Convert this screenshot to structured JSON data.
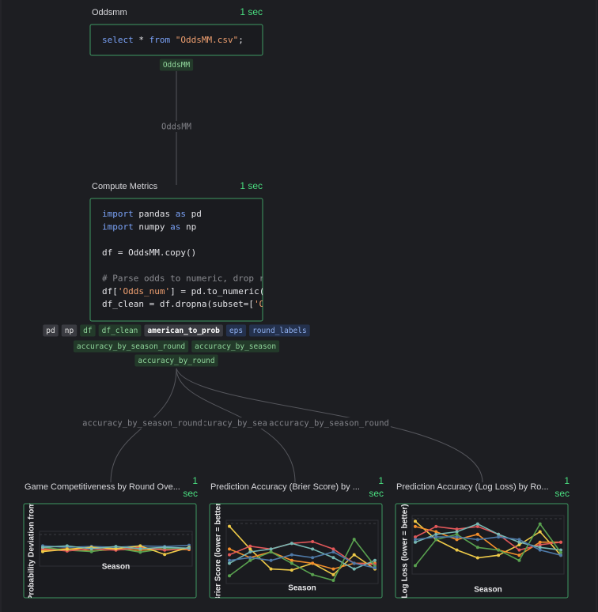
{
  "cells": [
    {
      "title": "Oddsmm",
      "duration": "1 sec",
      "code": [
        [
          {
            "t": "select",
            "s": "kw"
          },
          {
            "t": " * "
          },
          {
            "t": "from",
            "s": "kw"
          },
          {
            "t": " "
          },
          {
            "t": "\"OddsMM.csv\"",
            "s": "str"
          },
          {
            "t": ";"
          }
        ]
      ],
      "outputs": [
        {
          "t": "OddsMM",
          "s": "green"
        }
      ]
    },
    {
      "title": "Compute Metrics",
      "duration": "1 sec",
      "code": [
        [
          {
            "t": "import",
            "s": "kw"
          },
          {
            "t": " pandas "
          },
          {
            "t": "as",
            "s": "kw"
          },
          {
            "t": " pd"
          }
        ],
        [
          {
            "t": "import",
            "s": "kw"
          },
          {
            "t": " numpy "
          },
          {
            "t": "as",
            "s": "kw"
          },
          {
            "t": " np"
          }
        ],
        [],
        [
          {
            "t": "df = OddsMM.copy()"
          }
        ],
        [],
        [
          {
            "t": "# Parse odds to numeric, drop rows",
            "s": "com"
          }
        ],
        [
          {
            "t": "df["
          },
          {
            "t": "'Odds_num'",
            "s": "str"
          },
          {
            "t": "] = pd.to_numeric("
          }
        ],
        [
          {
            "t": "df_clean = df.dropna(subset=["
          },
          {
            "t": "'Odds_num'",
            "s": "str"
          }
        ]
      ],
      "outputs": [
        [
          {
            "t": "pd",
            "s": "plain"
          },
          {
            "t": "np",
            "s": "plain"
          },
          {
            "t": "df",
            "s": "green"
          },
          {
            "t": "df_clean",
            "s": "green"
          },
          {
            "t": "american_to_prob",
            "s": "white"
          },
          {
            "t": "eps",
            "s": "blue"
          },
          {
            "t": "round_labels",
            "s": "blue"
          }
        ],
        [
          {
            "t": "accuracy_by_season_round",
            "s": "green"
          },
          {
            "t": "accuracy_by_season",
            "s": "green"
          }
        ],
        [
          {
            "t": "accuracy_by_round",
            "s": "green"
          }
        ]
      ]
    }
  ],
  "edges": [
    {
      "label": "OddsMM"
    },
    {
      "label": "accuracy_by_season"
    },
    {
      "label": "accuracy_by_season_round"
    },
    {
      "label": "accuracy_by_season_round"
    }
  ],
  "charts": [
    {
      "type": "line",
      "title": "Game Competitiveness by Round Ove...",
      "duration": "1 sec",
      "ylabel": "Probability Deviation from",
      "xlabel": "Season",
      "ylim": [
        0,
        1
      ],
      "series": [
        {
          "color": "#4e79a7",
          "values": [
            0.6,
            0.55,
            0.58,
            0.55,
            0.6,
            0.58,
            0.62
          ]
        },
        {
          "color": "#f28e2b",
          "values": [
            0.45,
            0.5,
            0.42,
            0.48,
            0.45,
            0.5,
            0.47
          ]
        },
        {
          "color": "#59a14f",
          "values": [
            0.55,
            0.45,
            0.4,
            0.52,
            0.38,
            0.5,
            0.5
          ]
        },
        {
          "color": "#e15759",
          "values": [
            0.5,
            0.42,
            0.5,
            0.45,
            0.55,
            0.45,
            0.5
          ]
        },
        {
          "color": "#edc948",
          "values": [
            0.4,
            0.48,
            0.55,
            0.5,
            0.6,
            0.3,
            0.55
          ]
        },
        {
          "color": "#76b7b2",
          "values": [
            0.55,
            0.6,
            0.5,
            0.58,
            0.5,
            0.55,
            0.52
          ]
        }
      ]
    },
    {
      "type": "line",
      "title": "Prediction Accuracy (Brier Score) by ...",
      "duration": "1 sec",
      "ylabel": "Brier Score (lower = better)",
      "xlabel": "Season",
      "ylim": [
        0,
        1
      ],
      "series": [
        {
          "color": "#edc948",
          "values": [
            0.95,
            0.55,
            0.2,
            0.18,
            0.3,
            0.1,
            0.45,
            0.2
          ]
        },
        {
          "color": "#f28e2b",
          "values": [
            0.55,
            0.4,
            0.5,
            0.35,
            0.3,
            0.2,
            0.3,
            0.3
          ]
        },
        {
          "color": "#e15759",
          "values": [
            0.45,
            0.6,
            0.55,
            0.65,
            0.68,
            0.55,
            0.3,
            0.28
          ]
        },
        {
          "color": "#76b7b2",
          "values": [
            0.3,
            0.5,
            0.55,
            0.65,
            0.55,
            0.4,
            0.2,
            0.35
          ]
        },
        {
          "color": "#59a14f",
          "values": [
            0.08,
            0.35,
            0.5,
            0.3,
            0.1,
            0.0,
            0.72,
            0.25
          ]
        },
        {
          "color": "#4e79a7",
          "values": [
            0.35,
            0.4,
            0.35,
            0.45,
            0.4,
            0.5,
            0.3,
            0.22
          ]
        }
      ]
    },
    {
      "type": "line",
      "title": "Prediction Accuracy (Log Loss) by Ro...",
      "duration": "1 sec",
      "ylabel": "Log Loss (lower = better)",
      "xlabel": "Season",
      "ylim": [
        0,
        1
      ],
      "series": [
        {
          "color": "#edc948",
          "values": [
            0.95,
            0.6,
            0.4,
            0.25,
            0.3,
            0.5,
            0.75,
            0.3
          ]
        },
        {
          "color": "#f28e2b",
          "values": [
            0.85,
            0.75,
            0.6,
            0.7,
            0.4,
            0.3,
            0.55,
            0.55
          ]
        },
        {
          "color": "#e15759",
          "values": [
            0.65,
            0.85,
            0.8,
            0.85,
            0.7,
            0.4,
            0.5,
            0.55
          ]
        },
        {
          "color": "#76b7b2",
          "values": [
            0.55,
            0.7,
            0.75,
            0.9,
            0.7,
            0.55,
            0.45,
            0.4
          ]
        },
        {
          "color": "#59a14f",
          "values": [
            0.1,
            0.6,
            0.7,
            0.45,
            0.4,
            0.2,
            0.9,
            0.35
          ]
        },
        {
          "color": "#4e79a7",
          "values": [
            0.6,
            0.65,
            0.65,
            0.6,
            0.65,
            0.6,
            0.4,
            0.3
          ]
        }
      ]
    }
  ]
}
